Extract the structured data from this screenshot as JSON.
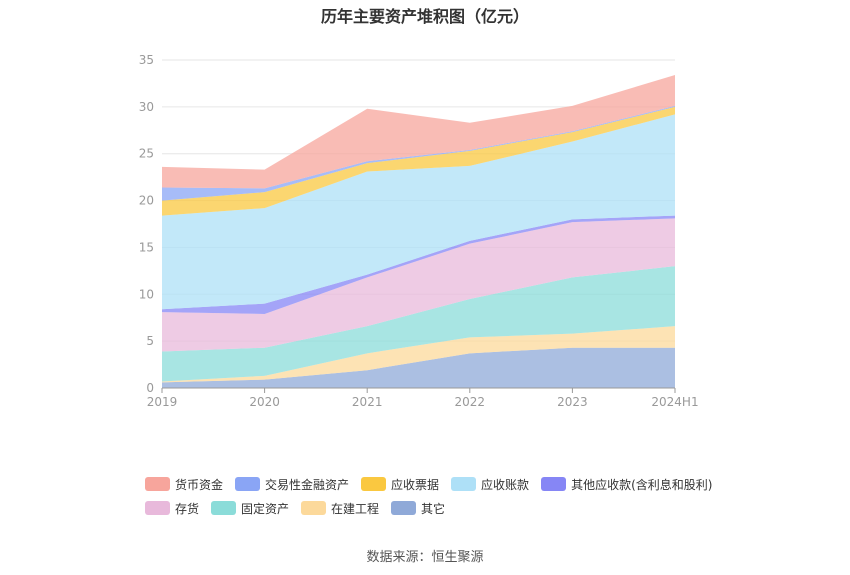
{
  "title": "历年主要资产堆积图（亿元）",
  "source": "数据来源：恒生聚源",
  "chart_data": {
    "type": "area",
    "stacked": true,
    "categories": [
      "2019",
      "2020",
      "2021",
      "2022",
      "2023",
      "2024H1"
    ],
    "ylim": [
      0,
      35
    ],
    "yticks": [
      0,
      5,
      10,
      15,
      20,
      25,
      30,
      35
    ],
    "grid": true,
    "legend_position": "bottom",
    "series": [
      {
        "name": "其它",
        "color": "#8fa9d8",
        "values": [
          0.6,
          0.9,
          1.9,
          3.7,
          4.3,
          4.3
        ]
      },
      {
        "name": "在建工程",
        "color": "#fcd99b",
        "values": [
          0.1,
          0.4,
          1.8,
          1.7,
          1.5,
          2.3
        ]
      },
      {
        "name": "固定资产",
        "color": "#8bdcd9",
        "values": [
          3.2,
          3.0,
          2.9,
          4.1,
          6.0,
          6.4
        ]
      },
      {
        "name": "存货",
        "color": "#e8b9db",
        "values": [
          4.2,
          3.6,
          5.2,
          5.9,
          5.9,
          5.1
        ]
      },
      {
        "name": "其他应收款(含利息和股利)",
        "color": "#8686f5",
        "values": [
          0.3,
          1.1,
          0.3,
          0.3,
          0.3,
          0.3
        ]
      },
      {
        "name": "应收账款",
        "color": "#aee0f7",
        "values": [
          10.0,
          10.2,
          11.0,
          8.0,
          8.3,
          10.8
        ]
      },
      {
        "name": "应收票据",
        "color": "#fac840",
        "values": [
          1.6,
          1.7,
          0.9,
          1.6,
          1.0,
          0.8
        ]
      },
      {
        "name": "交易性金融资产",
        "color": "#8aa5f5",
        "values": [
          1.4,
          0.4,
          0.2,
          0.1,
          0.1,
          0.1
        ]
      },
      {
        "name": "货币资金",
        "color": "#f7a59c",
        "values": [
          2.2,
          2.0,
          5.6,
          2.9,
          2.7,
          3.3
        ]
      }
    ]
  },
  "legend": {
    "rows": [
      [
        {
          "label": "货币资金",
          "color": "#f7a59c"
        },
        {
          "label": "交易性金融资产",
          "color": "#8aa5f5"
        },
        {
          "label": "应收票据",
          "color": "#fac840"
        },
        {
          "label": "应收账款",
          "color": "#aee0f7"
        },
        {
          "label": "其他应收款(含利息和股利)",
          "color": "#8686f5"
        }
      ],
      [
        {
          "label": "存货",
          "color": "#e8b9db"
        },
        {
          "label": "固定资产",
          "color": "#8bdcd9"
        },
        {
          "label": "在建工程",
          "color": "#fcd99b"
        },
        {
          "label": "其它",
          "color": "#8fa9d8"
        }
      ]
    ]
  }
}
